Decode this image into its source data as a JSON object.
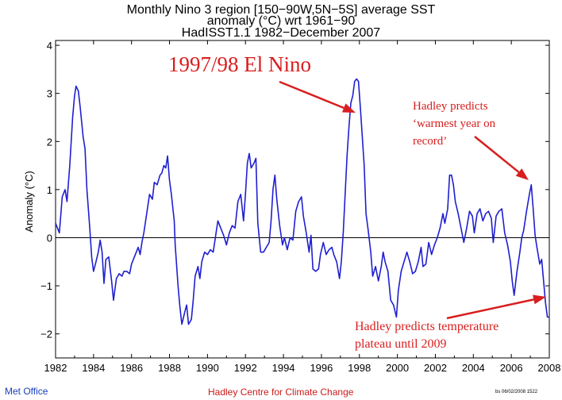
{
  "chart_data": {
    "type": "line",
    "title_lines": [
      "Monthly Nino 3 region [150−90W,5N−5S] average SST",
      "anomaly (°C) wrt 1961−90",
      "HadISST1.1 1982−December 2007"
    ],
    "ylabel": "Anomaly (°C)",
    "xlabel": "",
    "xlim": [
      1982,
      2008
    ],
    "ylim": [
      -2.5,
      4.1
    ],
    "x_ticks": [
      1982,
      1984,
      1986,
      1988,
      1990,
      1992,
      1994,
      1996,
      1998,
      2000,
      2002,
      2004,
      2006,
      2008
    ],
    "y_ticks": [
      -2,
      -1,
      0,
      1,
      2,
      3,
      4
    ],
    "line_color": "#1f1fd0",
    "zero_line": true,
    "series": [
      {
        "points": [
          [
            1982.0,
            0.3
          ],
          [
            1982.2,
            0.1
          ],
          [
            1982.35,
            0.85
          ],
          [
            1982.5,
            1.0
          ],
          [
            1982.6,
            0.75
          ],
          [
            1982.75,
            1.5
          ],
          [
            1982.9,
            2.5
          ],
          [
            1983.0,
            2.95
          ],
          [
            1983.08,
            3.15
          ],
          [
            1983.2,
            3.05
          ],
          [
            1983.3,
            2.7
          ],
          [
            1983.45,
            2.1
          ],
          [
            1983.55,
            1.85
          ],
          [
            1983.65,
            1.0
          ],
          [
            1983.8,
            0.2
          ],
          [
            1983.9,
            -0.4
          ],
          [
            1984.0,
            -0.7
          ],
          [
            1984.1,
            -0.55
          ],
          [
            1984.25,
            -0.3
          ],
          [
            1984.35,
            -0.05
          ],
          [
            1984.45,
            -0.3
          ],
          [
            1984.55,
            -0.95
          ],
          [
            1984.65,
            -0.45
          ],
          [
            1984.8,
            -0.4
          ],
          [
            1984.95,
            -0.9
          ],
          [
            1985.05,
            -1.3
          ],
          [
            1985.2,
            -0.85
          ],
          [
            1985.35,
            -0.75
          ],
          [
            1985.5,
            -0.8
          ],
          [
            1985.6,
            -0.7
          ],
          [
            1985.75,
            -0.7
          ],
          [
            1985.9,
            -0.75
          ],
          [
            1986.0,
            -0.55
          ],
          [
            1986.2,
            -0.35
          ],
          [
            1986.35,
            -0.2
          ],
          [
            1986.45,
            -0.35
          ],
          [
            1986.55,
            -0.1
          ],
          [
            1986.65,
            0.1
          ],
          [
            1986.8,
            0.5
          ],
          [
            1986.95,
            0.9
          ],
          [
            1987.1,
            0.8
          ],
          [
            1987.2,
            1.15
          ],
          [
            1987.35,
            1.1
          ],
          [
            1987.5,
            1.3
          ],
          [
            1987.6,
            1.35
          ],
          [
            1987.7,
            1.5
          ],
          [
            1987.8,
            1.45
          ],
          [
            1987.9,
            1.7
          ],
          [
            1988.0,
            1.2
          ],
          [
            1988.1,
            0.9
          ],
          [
            1988.25,
            0.35
          ],
          [
            1988.3,
            -0.15
          ],
          [
            1988.45,
            -1.0
          ],
          [
            1988.55,
            -1.45
          ],
          [
            1988.65,
            -1.8
          ],
          [
            1988.8,
            -1.55
          ],
          [
            1988.9,
            -1.4
          ],
          [
            1989.0,
            -1.8
          ],
          [
            1989.15,
            -1.7
          ],
          [
            1989.25,
            -1.3
          ],
          [
            1989.35,
            -0.8
          ],
          [
            1989.5,
            -0.6
          ],
          [
            1989.6,
            -0.85
          ],
          [
            1989.7,
            -0.5
          ],
          [
            1989.85,
            -0.3
          ],
          [
            1990.0,
            -0.35
          ],
          [
            1990.15,
            -0.25
          ],
          [
            1990.3,
            -0.3
          ],
          [
            1990.45,
            0.1
          ],
          [
            1990.55,
            0.35
          ],
          [
            1990.7,
            0.2
          ],
          [
            1990.85,
            0.05
          ],
          [
            1991.0,
            -0.15
          ],
          [
            1991.15,
            0.1
          ],
          [
            1991.3,
            0.25
          ],
          [
            1991.45,
            0.2
          ],
          [
            1991.6,
            0.75
          ],
          [
            1991.75,
            0.9
          ],
          [
            1991.9,
            0.35
          ],
          [
            1992.0,
            0.9
          ],
          [
            1992.1,
            1.55
          ],
          [
            1992.2,
            1.75
          ],
          [
            1992.3,
            1.45
          ],
          [
            1992.45,
            1.55
          ],
          [
            1992.55,
            1.65
          ],
          [
            1992.65,
            0.3
          ],
          [
            1992.8,
            -0.3
          ],
          [
            1992.95,
            -0.3
          ],
          [
            1993.1,
            -0.2
          ],
          [
            1993.25,
            -0.1
          ],
          [
            1993.35,
            0.35
          ],
          [
            1993.45,
            1.0
          ],
          [
            1993.55,
            1.3
          ],
          [
            1993.65,
            0.8
          ],
          [
            1993.8,
            0.25
          ],
          [
            1993.95,
            -0.15
          ],
          [
            1994.05,
            0.0
          ],
          [
            1994.2,
            -0.25
          ],
          [
            1994.35,
            0.0
          ],
          [
            1994.5,
            -0.05
          ],
          [
            1994.65,
            0.55
          ],
          [
            1994.8,
            0.75
          ],
          [
            1994.95,
            0.85
          ],
          [
            1995.05,
            0.45
          ],
          [
            1995.2,
            0.1
          ],
          [
            1995.35,
            -0.3
          ],
          [
            1995.45,
            0.05
          ],
          [
            1995.55,
            -0.65
          ],
          [
            1995.7,
            -0.7
          ],
          [
            1995.85,
            -0.65
          ],
          [
            1995.95,
            -0.35
          ],
          [
            1996.1,
            -0.1
          ],
          [
            1996.25,
            -0.35
          ],
          [
            1996.4,
            -0.25
          ],
          [
            1996.55,
            -0.2
          ],
          [
            1996.65,
            -0.35
          ],
          [
            1996.8,
            -0.5
          ],
          [
            1996.95,
            -0.85
          ],
          [
            1997.05,
            -0.5
          ],
          [
            1997.15,
            0.1
          ],
          [
            1997.25,
            0.9
          ],
          [
            1997.35,
            1.7
          ],
          [
            1997.45,
            2.3
          ],
          [
            1997.55,
            2.8
          ],
          [
            1997.65,
            2.95
          ],
          [
            1997.75,
            3.25
          ],
          [
            1997.85,
            3.3
          ],
          [
            1997.95,
            3.25
          ],
          [
            1998.05,
            2.7
          ],
          [
            1998.15,
            2.1
          ],
          [
            1998.25,
            1.5
          ],
          [
            1998.35,
            0.5
          ],
          [
            1998.45,
            0.2
          ],
          [
            1998.6,
            -0.3
          ],
          [
            1998.7,
            -0.8
          ],
          [
            1998.85,
            -0.6
          ],
          [
            1999.0,
            -0.9
          ],
          [
            1999.15,
            -0.6
          ],
          [
            1999.25,
            -0.3
          ],
          [
            1999.35,
            -0.5
          ],
          [
            1999.5,
            -0.7
          ],
          [
            1999.65,
            -1.3
          ],
          [
            1999.8,
            -1.4
          ],
          [
            1999.95,
            -1.65
          ],
          [
            2000.05,
            -1.1
          ],
          [
            2000.2,
            -0.7
          ],
          [
            2000.35,
            -0.5
          ],
          [
            2000.5,
            -0.3
          ],
          [
            2000.65,
            -0.5
          ],
          [
            2000.8,
            -0.75
          ],
          [
            2000.95,
            -0.7
          ],
          [
            2001.1,
            -0.5
          ],
          [
            2001.25,
            -0.2
          ],
          [
            2001.35,
            -0.6
          ],
          [
            2001.5,
            -0.55
          ],
          [
            2001.65,
            -0.1
          ],
          [
            2001.8,
            -0.35
          ],
          [
            2001.95,
            -0.15
          ],
          [
            2002.1,
            0.0
          ],
          [
            2002.25,
            0.2
          ],
          [
            2002.4,
            0.5
          ],
          [
            2002.5,
            0.3
          ],
          [
            2002.65,
            0.6
          ],
          [
            2002.75,
            1.3
          ],
          [
            2002.85,
            1.3
          ],
          [
            2002.95,
            1.1
          ],
          [
            2003.05,
            0.75
          ],
          [
            2003.2,
            0.5
          ],
          [
            2003.35,
            0.2
          ],
          [
            2003.5,
            -0.1
          ],
          [
            2003.65,
            0.2
          ],
          [
            2003.8,
            0.55
          ],
          [
            2003.95,
            0.45
          ],
          [
            2004.05,
            0.1
          ],
          [
            2004.2,
            0.5
          ],
          [
            2004.35,
            0.6
          ],
          [
            2004.5,
            0.35
          ],
          [
            2004.65,
            0.5
          ],
          [
            2004.8,
            0.55
          ],
          [
            2004.95,
            0.4
          ],
          [
            2005.05,
            -0.1
          ],
          [
            2005.2,
            0.45
          ],
          [
            2005.35,
            0.55
          ],
          [
            2005.5,
            0.6
          ],
          [
            2005.65,
            0.1
          ],
          [
            2005.8,
            -0.15
          ],
          [
            2005.95,
            -0.5
          ],
          [
            2006.05,
            -0.9
          ],
          [
            2006.15,
            -1.2
          ],
          [
            2006.3,
            -0.7
          ],
          [
            2006.45,
            -0.3
          ],
          [
            2006.55,
            0.0
          ],
          [
            2006.65,
            0.15
          ],
          [
            2006.8,
            0.55
          ],
          [
            2006.95,
            0.9
          ],
          [
            2007.05,
            1.1
          ],
          [
            2007.15,
            0.6
          ],
          [
            2007.25,
            0.05
          ],
          [
            2007.35,
            -0.2
          ],
          [
            2007.5,
            -0.55
          ],
          [
            2007.6,
            -0.45
          ],
          [
            2007.7,
            -0.9
          ],
          [
            2007.8,
            -1.35
          ],
          [
            2007.9,
            -1.65
          ],
          [
            2008.0,
            -1.65
          ]
        ]
      }
    ],
    "annotations": [
      {
        "text": "1997/98 El Nino"
      },
      {
        "text": "Hadley predicts"
      },
      {
        "text": "‘warmest year on"
      },
      {
        "text": "record’"
      },
      {
        "text": "Hadley predicts temperature"
      },
      {
        "text": "plateau until 2009"
      }
    ],
    "annotation_color": "#d81e1e"
  },
  "footer": {
    "left": "Met Office",
    "middle": "Hadley Centre for Climate Change",
    "right": "bs 06/02/2008 1522"
  }
}
